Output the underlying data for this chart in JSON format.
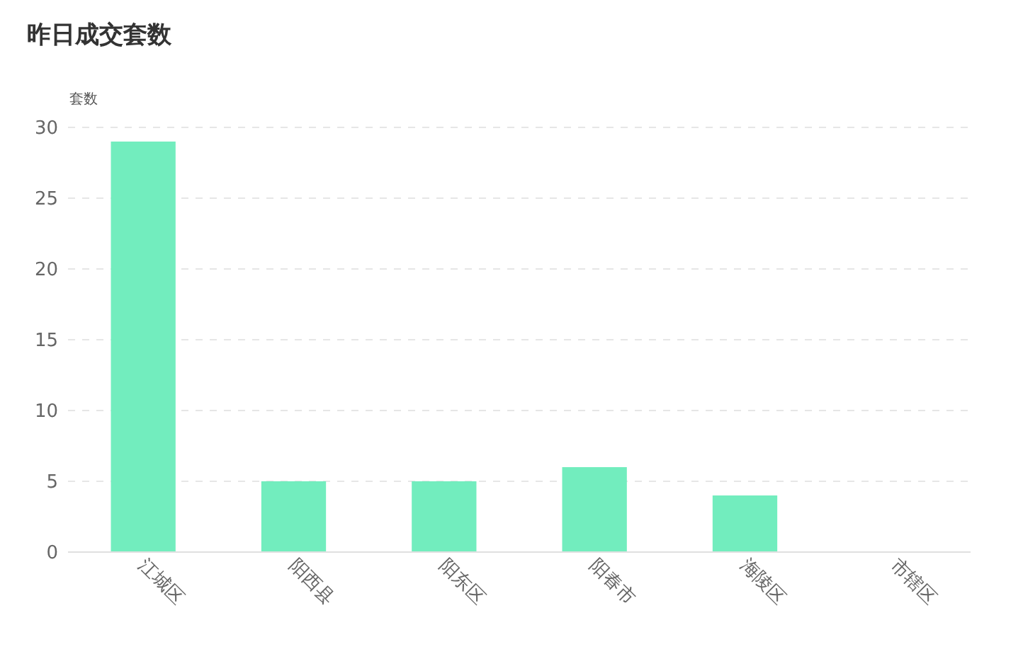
{
  "chart_data": {
    "type": "bar",
    "title": "昨日成交套数",
    "ylabel": "套数",
    "categories": [
      "江城区",
      "阳西县",
      "阳东区",
      "阳春市",
      "海陵区",
      "市辖区"
    ],
    "values": [
      29,
      5,
      5,
      6,
      4,
      0
    ],
    "color": "#72edbe",
    "ylim": [
      0,
      30
    ],
    "yticks": [
      0,
      5,
      10,
      15,
      20,
      25,
      30
    ],
    "grid": "y"
  }
}
